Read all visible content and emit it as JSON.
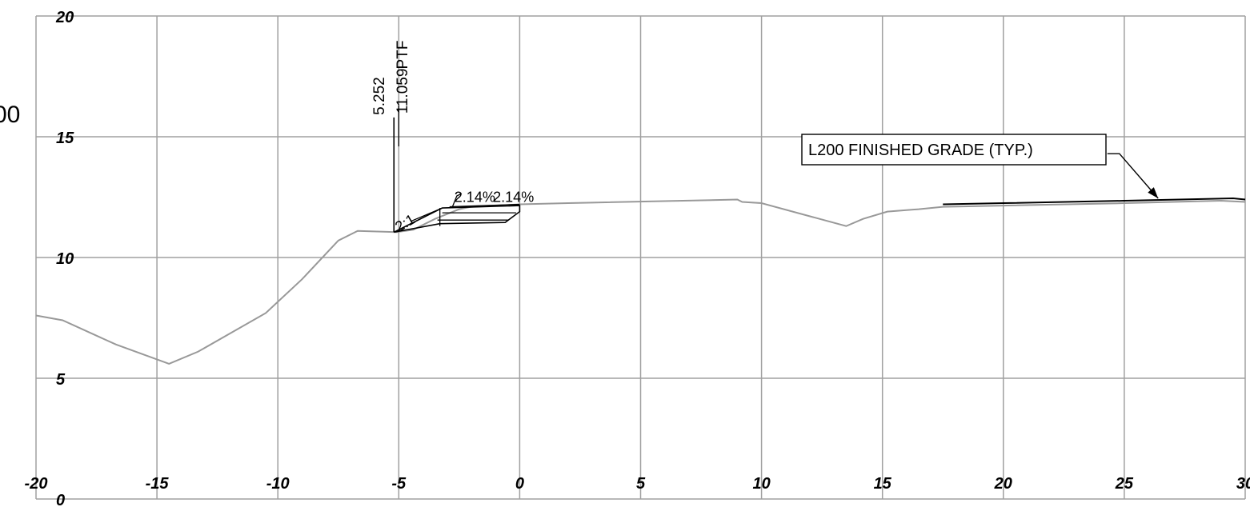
{
  "chart_data": {
    "type": "line",
    "title": "",
    "xlabel": "",
    "ylabel": "",
    "xlim": [
      -20,
      30
    ],
    "ylim": [
      0,
      20
    ],
    "grid": true,
    "x_ticks": [
      -20,
      -15,
      -10,
      -5,
      0,
      5,
      10,
      15,
      20,
      25,
      30
    ],
    "x_tick_labels": [
      "-20",
      "-15",
      "-10",
      "-5",
      "0",
      "5",
      "10",
      "15",
      "20",
      "25",
      "30"
    ],
    "y_ticks": [
      0,
      5,
      10,
      15,
      20
    ],
    "y_tick_labels": [
      "0",
      "5",
      "10",
      "15",
      "20"
    ],
    "clipped_left_label": "00",
    "series": [
      {
        "color": "#999999",
        "x": [
          -20,
          -18.9,
          -16.7,
          -14.5,
          -13.3,
          -10.5,
          -9,
          -7.5,
          -6.7,
          -5.1,
          -4.4,
          -3.5,
          -2.5,
          -2,
          0,
          2,
          9,
          9.2,
          10,
          13.5,
          14.2,
          15.2,
          16.5,
          17.5,
          20,
          25,
          29,
          30
        ],
        "y": [
          7.6,
          7.4,
          6.4,
          5.6,
          6.1,
          7.7,
          9.1,
          10.7,
          11.1,
          11.05,
          11.15,
          11.6,
          12.0,
          12.1,
          12.2,
          12.25,
          12.4,
          12.3,
          12.25,
          11.3,
          11.6,
          11.9,
          12.0,
          12.1,
          12.15,
          12.25,
          12.35,
          12.3
        ]
      },
      {
        "color": "#000000",
        "x": [
          17.5,
          20,
          25,
          29.5,
          30
        ],
        "y": [
          12.2,
          12.25,
          12.35,
          12.45,
          12.4
        ]
      }
    ],
    "design_section": {
      "color": "#000000",
      "outline": [
        [
          -5.2,
          11.05
        ],
        [
          -3.2,
          12.05
        ],
        [
          0,
          12.15
        ],
        [
          0,
          11.9
        ],
        [
          -0.6,
          11.45
        ],
        [
          -3.3,
          11.4
        ],
        [
          -5.2,
          11.05
        ]
      ],
      "inner_lines": [
        [
          [
            -4.5,
            11.5
          ],
          [
            -3.2,
            12.05
          ]
        ],
        [
          [
            -3.4,
            11.55
          ],
          [
            -0.45,
            11.55
          ]
        ],
        [
          [
            -3.2,
            11.85
          ],
          [
            -0.15,
            11.85
          ]
        ],
        [
          [
            -2.9,
            12.1
          ],
          [
            0,
            12.2
          ]
        ],
        [
          [
            -3.3,
            11.3
          ],
          [
            -3.3,
            12.05
          ]
        ]
      ],
      "break_mark": [
        [
          -2.8,
          12.05
        ],
        [
          -2.6,
          12.55
        ],
        [
          -2.4,
          12.65
        ]
      ],
      "ptf_post": [
        [
          -5.2,
          11.05
        ],
        [
          -5.2,
          15.8
        ]
      ]
    },
    "annotations": [
      {
        "text": "5.252",
        "x": -5.6,
        "y": 15.9,
        "rotate": -90,
        "size": 19
      },
      {
        "text": "PTF",
        "x": -4.65,
        "y": 17.8,
        "rotate": -90,
        "size": 19
      },
      {
        "text": "11.059",
        "x": -4.65,
        "y": 15.95,
        "rotate": -90,
        "size": 19
      },
      {
        "text": "2:1",
        "x": -5.0,
        "y": 11.05,
        "rotate": -30,
        "size": 18
      },
      {
        "text": "2.14%",
        "x": -2.7,
        "y": 12.3,
        "rotate": 0,
        "size": 18
      },
      {
        "text": "2.14%",
        "x": -1.1,
        "y": 12.3,
        "rotate": 0,
        "size": 18
      }
    ],
    "callout": {
      "text": "L200 FINISHED GRADE (TYP.)",
      "leader_x": [
        24.3,
        24.8,
        26.4
      ],
      "leader_y": [
        14.3,
        14.3,
        12.45
      ]
    }
  }
}
